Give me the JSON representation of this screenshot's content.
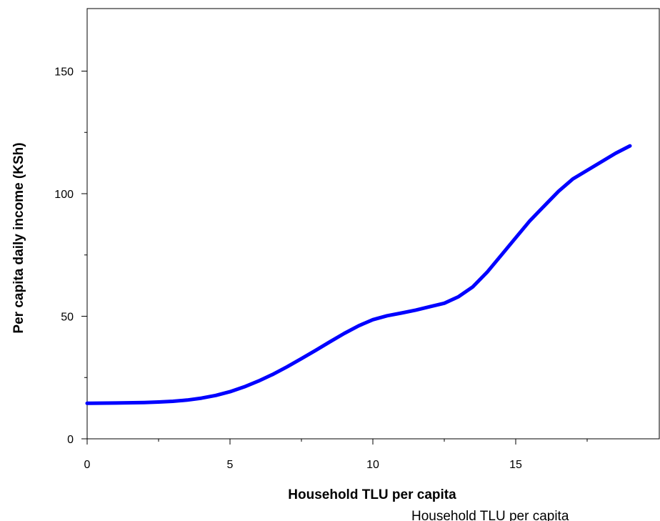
{
  "chart_data": {
    "type": "line",
    "title": "",
    "xlabel": "Household TLU per capita",
    "ylabel": "Per capita daily income (KSh)",
    "xlim": [
      0,
      20
    ],
    "ylim": [
      0,
      150
    ],
    "x_major_ticks": [
      0,
      5,
      10,
      15
    ],
    "x_minor_ticks": [
      2.5,
      7.5,
      12.5,
      17.5
    ],
    "y_major_ticks": [
      0,
      50,
      100,
      150
    ],
    "y_minor_ticks": [
      25,
      75,
      125
    ],
    "grid": false,
    "legend": "none",
    "series": [
      {
        "color": "#0000ff",
        "x": [
          0,
          1,
          2,
          2.5,
          3,
          3.5,
          4,
          4.5,
          5,
          5.5,
          6,
          6.5,
          7,
          7.5,
          8,
          8.5,
          9,
          9.5,
          10,
          10.5,
          11,
          11.5,
          12,
          12.5,
          13,
          13.5,
          14,
          14.5,
          15,
          15.5,
          16,
          16.5,
          17,
          17.5,
          18,
          18.5,
          19
        ],
        "y": [
          14.5,
          14.6,
          14.8,
          15,
          15.3,
          15.8,
          16.6,
          17.7,
          19.2,
          21.2,
          23.6,
          26.3,
          29.4,
          32.7,
          36.1,
          39.6,
          43,
          46.1,
          48.6,
          50.2,
          51.3,
          52.5,
          53.9,
          55.3,
          58,
          62,
          68,
          75,
          82,
          89,
          95,
          101,
          106,
          109.5,
          113,
          116.5,
          119.5
        ]
      }
    ]
  },
  "footer": {
    "caption": "Household TLU per capita"
  }
}
